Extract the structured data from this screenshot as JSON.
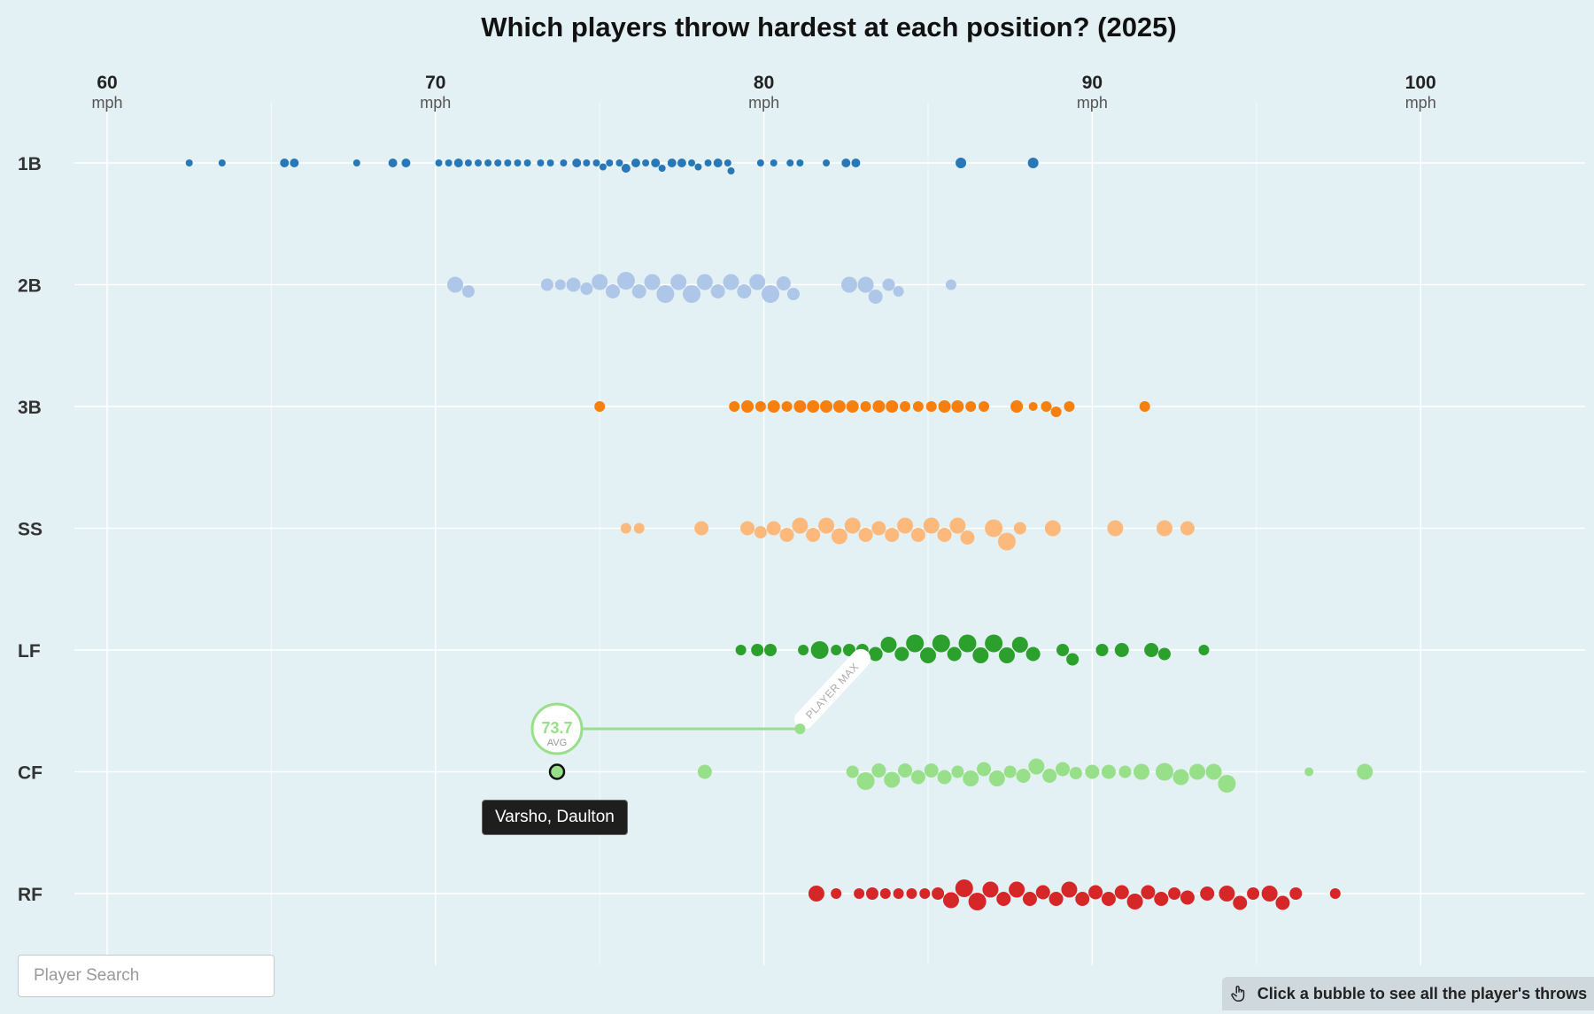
{
  "chart_data": {
    "type": "scatter",
    "subtype": "beeswarm",
    "title": "Which players throw hardest at each position? (2025)",
    "x_axis": {
      "ticks": [
        60,
        70,
        80,
        90,
        100
      ],
      "unit": "mph",
      "range": [
        58.1,
        105.1
      ]
    },
    "categories": [
      "1B",
      "2B",
      "3B",
      "SS",
      "LF",
      "CF",
      "RF"
    ],
    "series": [
      {
        "name": "1B",
        "color": "#2878b8",
        "points": [
          {
            "x": 62.5,
            "r": 4
          },
          {
            "x": 63.5,
            "r": 4
          },
          {
            "x": 65.4,
            "r": 5
          },
          {
            "x": 65.7,
            "r": 5
          },
          {
            "x": 67.6,
            "r": 4
          },
          {
            "x": 68.7,
            "r": 5
          },
          {
            "x": 69.1,
            "r": 5
          },
          {
            "x": 70.1,
            "r": 4
          },
          {
            "x": 70.4,
            "r": 4
          },
          {
            "x": 70.7,
            "r": 5
          },
          {
            "x": 71.0,
            "r": 4
          },
          {
            "x": 71.3,
            "r": 4
          },
          {
            "x": 71.6,
            "r": 4
          },
          {
            "x": 71.9,
            "r": 4
          },
          {
            "x": 72.2,
            "r": 4
          },
          {
            "x": 72.5,
            "r": 4
          },
          {
            "x": 72.8,
            "r": 4
          },
          {
            "x": 73.2,
            "r": 4
          },
          {
            "x": 73.5,
            "r": 4
          },
          {
            "x": 73.9,
            "r": 4
          },
          {
            "x": 74.3,
            "r": 5
          },
          {
            "x": 74.6,
            "r": 4
          },
          {
            "x": 74.9,
            "r": 4
          },
          {
            "x": 75.1,
            "r": 4
          },
          {
            "x": 75.3,
            "r": 4
          },
          {
            "x": 75.6,
            "r": 4
          },
          {
            "x": 75.8,
            "r": 5
          },
          {
            "x": 76.1,
            "r": 5
          },
          {
            "x": 76.4,
            "r": 4
          },
          {
            "x": 76.7,
            "r": 5
          },
          {
            "x": 76.9,
            "r": 4
          },
          {
            "x": 77.2,
            "r": 5
          },
          {
            "x": 77.5,
            "r": 5
          },
          {
            "x": 77.8,
            "r": 4
          },
          {
            "x": 78.0,
            "r": 4
          },
          {
            "x": 78.3,
            "r": 4
          },
          {
            "x": 78.6,
            "r": 5
          },
          {
            "x": 78.9,
            "r": 4
          },
          {
            "x": 79.0,
            "r": 4
          },
          {
            "x": 79.9,
            "r": 4
          },
          {
            "x": 80.3,
            "r": 4
          },
          {
            "x": 80.8,
            "r": 4
          },
          {
            "x": 81.1,
            "r": 4
          },
          {
            "x": 81.9,
            "r": 4
          },
          {
            "x": 82.5,
            "r": 5
          },
          {
            "x": 82.8,
            "r": 5
          },
          {
            "x": 86.0,
            "r": 6
          },
          {
            "x": 88.2,
            "r": 6
          }
        ]
      },
      {
        "name": "2B",
        "color": "#aec7e8",
        "points": [
          {
            "x": 70.6,
            "r": 9
          },
          {
            "x": 71.0,
            "r": 7
          },
          {
            "x": 73.4,
            "r": 7
          },
          {
            "x": 73.8,
            "r": 6
          },
          {
            "x": 74.2,
            "r": 8
          },
          {
            "x": 74.6,
            "r": 7
          },
          {
            "x": 75.0,
            "r": 9
          },
          {
            "x": 75.4,
            "r": 8
          },
          {
            "x": 75.8,
            "r": 10
          },
          {
            "x": 76.2,
            "r": 8
          },
          {
            "x": 76.6,
            "r": 9
          },
          {
            "x": 77.0,
            "r": 10
          },
          {
            "x": 77.4,
            "r": 9
          },
          {
            "x": 77.8,
            "r": 10
          },
          {
            "x": 78.2,
            "r": 9
          },
          {
            "x": 78.6,
            "r": 8
          },
          {
            "x": 79.0,
            "r": 9
          },
          {
            "x": 79.4,
            "r": 8
          },
          {
            "x": 79.8,
            "r": 9
          },
          {
            "x": 80.2,
            "r": 10
          },
          {
            "x": 80.6,
            "r": 8
          },
          {
            "x": 80.9,
            "r": 7
          },
          {
            "x": 82.6,
            "r": 9
          },
          {
            "x": 83.1,
            "r": 9
          },
          {
            "x": 83.4,
            "r": 8
          },
          {
            "x": 83.8,
            "r": 7
          },
          {
            "x": 84.1,
            "r": 6
          },
          {
            "x": 85.7,
            "r": 6
          }
        ]
      },
      {
        "name": "3B",
        "color": "#f77f0e",
        "points": [
          {
            "x": 75.0,
            "r": 6
          },
          {
            "x": 79.1,
            "r": 6
          },
          {
            "x": 79.5,
            "r": 7
          },
          {
            "x": 79.9,
            "r": 6
          },
          {
            "x": 80.3,
            "r": 7
          },
          {
            "x": 80.7,
            "r": 6
          },
          {
            "x": 81.1,
            "r": 7
          },
          {
            "x": 81.5,
            "r": 7
          },
          {
            "x": 81.9,
            "r": 7
          },
          {
            "x": 82.3,
            "r": 7
          },
          {
            "x": 82.7,
            "r": 7
          },
          {
            "x": 83.1,
            "r": 6
          },
          {
            "x": 83.5,
            "r": 7
          },
          {
            "x": 83.9,
            "r": 7
          },
          {
            "x": 84.3,
            "r": 6
          },
          {
            "x": 84.7,
            "r": 6
          },
          {
            "x": 85.1,
            "r": 6
          },
          {
            "x": 85.5,
            "r": 7
          },
          {
            "x": 85.9,
            "r": 7
          },
          {
            "x": 86.3,
            "r": 6
          },
          {
            "x": 86.7,
            "r": 6
          },
          {
            "x": 87.7,
            "r": 7
          },
          {
            "x": 88.2,
            "r": 5
          },
          {
            "x": 88.6,
            "r": 6
          },
          {
            "x": 88.9,
            "r": 6
          },
          {
            "x": 89.3,
            "r": 6
          },
          {
            "x": 91.6,
            "r": 6
          }
        ]
      },
      {
        "name": "SS",
        "color": "#fdb97c",
        "points": [
          {
            "x": 75.8,
            "r": 6
          },
          {
            "x": 76.2,
            "r": 6
          },
          {
            "x": 78.1,
            "r": 8
          },
          {
            "x": 79.5,
            "r": 8
          },
          {
            "x": 79.9,
            "r": 7
          },
          {
            "x": 80.3,
            "r": 8
          },
          {
            "x": 80.7,
            "r": 8
          },
          {
            "x": 81.1,
            "r": 9
          },
          {
            "x": 81.5,
            "r": 8
          },
          {
            "x": 81.9,
            "r": 9
          },
          {
            "x": 82.3,
            "r": 9
          },
          {
            "x": 82.7,
            "r": 9
          },
          {
            "x": 83.1,
            "r": 8
          },
          {
            "x": 83.5,
            "r": 8
          },
          {
            "x": 83.9,
            "r": 8
          },
          {
            "x": 84.3,
            "r": 9
          },
          {
            "x": 84.7,
            "r": 8
          },
          {
            "x": 85.1,
            "r": 9
          },
          {
            "x": 85.5,
            "r": 8
          },
          {
            "x": 85.9,
            "r": 9
          },
          {
            "x": 86.2,
            "r": 8
          },
          {
            "x": 87.0,
            "r": 10
          },
          {
            "x": 87.4,
            "r": 10
          },
          {
            "x": 87.8,
            "r": 7
          },
          {
            "x": 88.8,
            "r": 9
          },
          {
            "x": 90.7,
            "r": 9
          },
          {
            "x": 92.2,
            "r": 9
          },
          {
            "x": 92.9,
            "r": 8
          }
        ]
      },
      {
        "name": "LF",
        "color": "#2ca02c",
        "points": [
          {
            "x": 79.3,
            "r": 6
          },
          {
            "x": 79.8,
            "r": 7
          },
          {
            "x": 80.2,
            "r": 7
          },
          {
            "x": 81.2,
            "r": 6
          },
          {
            "x": 81.7,
            "r": 10
          },
          {
            "x": 82.2,
            "r": 6
          },
          {
            "x": 82.6,
            "r": 7
          },
          {
            "x": 83.0,
            "r": 7
          },
          {
            "x": 83.4,
            "r": 8
          },
          {
            "x": 83.8,
            "r": 9
          },
          {
            "x": 84.2,
            "r": 8
          },
          {
            "x": 84.6,
            "r": 10
          },
          {
            "x": 85.0,
            "r": 9
          },
          {
            "x": 85.4,
            "r": 10
          },
          {
            "x": 85.8,
            "r": 8
          },
          {
            "x": 86.2,
            "r": 10
          },
          {
            "x": 86.6,
            "r": 9
          },
          {
            "x": 87.0,
            "r": 10
          },
          {
            "x": 87.4,
            "r": 9
          },
          {
            "x": 87.8,
            "r": 9
          },
          {
            "x": 88.2,
            "r": 8
          },
          {
            "x": 89.1,
            "r": 7
          },
          {
            "x": 89.4,
            "r": 7
          },
          {
            "x": 90.3,
            "r": 7
          },
          {
            "x": 90.9,
            "r": 8
          },
          {
            "x": 91.8,
            "r": 8
          },
          {
            "x": 92.2,
            "r": 7
          },
          {
            "x": 93.4,
            "r": 6
          }
        ]
      },
      {
        "name": "CF",
        "color": "#98df8a",
        "points": [
          {
            "x": 73.7,
            "r": 8,
            "highlighted": true
          },
          {
            "x": 78.2,
            "r": 8
          },
          {
            "x": 82.7,
            "r": 7
          },
          {
            "x": 83.1,
            "r": 10
          },
          {
            "x": 83.5,
            "r": 8
          },
          {
            "x": 83.9,
            "r": 9
          },
          {
            "x": 84.3,
            "r": 8
          },
          {
            "x": 84.7,
            "r": 8
          },
          {
            "x": 85.1,
            "r": 8
          },
          {
            "x": 85.5,
            "r": 8
          },
          {
            "x": 85.9,
            "r": 7
          },
          {
            "x": 86.3,
            "r": 9
          },
          {
            "x": 86.7,
            "r": 8
          },
          {
            "x": 87.1,
            "r": 9
          },
          {
            "x": 87.5,
            "r": 7
          },
          {
            "x": 87.9,
            "r": 8
          },
          {
            "x": 88.3,
            "r": 9
          },
          {
            "x": 88.7,
            "r": 8
          },
          {
            "x": 89.1,
            "r": 8
          },
          {
            "x": 89.5,
            "r": 7
          },
          {
            "x": 90.0,
            "r": 8
          },
          {
            "x": 90.5,
            "r": 8
          },
          {
            "x": 91.0,
            "r": 7
          },
          {
            "x": 91.5,
            "r": 9
          },
          {
            "x": 92.2,
            "r": 10
          },
          {
            "x": 92.7,
            "r": 9
          },
          {
            "x": 93.2,
            "r": 9
          },
          {
            "x": 93.7,
            "r": 9
          },
          {
            "x": 94.1,
            "r": 10
          },
          {
            "x": 96.6,
            "r": 5
          },
          {
            "x": 98.3,
            "r": 9
          }
        ]
      },
      {
        "name": "RF",
        "color": "#d62728",
        "points": [
          {
            "x": 81.6,
            "r": 9
          },
          {
            "x": 82.2,
            "r": 6
          },
          {
            "x": 82.9,
            "r": 6
          },
          {
            "x": 83.3,
            "r": 7
          },
          {
            "x": 83.7,
            "r": 6
          },
          {
            "x": 84.1,
            "r": 6
          },
          {
            "x": 84.5,
            "r": 6
          },
          {
            "x": 84.9,
            "r": 6
          },
          {
            "x": 85.3,
            "r": 7
          },
          {
            "x": 85.7,
            "r": 9
          },
          {
            "x": 86.1,
            "r": 10
          },
          {
            "x": 86.5,
            "r": 10
          },
          {
            "x": 86.9,
            "r": 9
          },
          {
            "x": 87.3,
            "r": 8
          },
          {
            "x": 87.7,
            "r": 9
          },
          {
            "x": 88.1,
            "r": 8
          },
          {
            "x": 88.5,
            "r": 8
          },
          {
            "x": 88.9,
            "r": 8
          },
          {
            "x": 89.3,
            "r": 9
          },
          {
            "x": 89.7,
            "r": 8
          },
          {
            "x": 90.1,
            "r": 8
          },
          {
            "x": 90.5,
            "r": 8
          },
          {
            "x": 90.9,
            "r": 8
          },
          {
            "x": 91.3,
            "r": 9
          },
          {
            "x": 91.7,
            "r": 8
          },
          {
            "x": 92.1,
            "r": 8
          },
          {
            "x": 92.5,
            "r": 7
          },
          {
            "x": 92.9,
            "r": 8
          },
          {
            "x": 93.5,
            "r": 8
          },
          {
            "x": 94.1,
            "r": 9
          },
          {
            "x": 94.5,
            "r": 8
          },
          {
            "x": 94.9,
            "r": 7
          },
          {
            "x": 95.4,
            "r": 9
          },
          {
            "x": 95.8,
            "r": 8
          },
          {
            "x": 96.2,
            "r": 7
          },
          {
            "x": 97.4,
            "r": 6
          }
        ]
      }
    ],
    "highlight": {
      "position": "CF",
      "player": "Varsho, Daulton",
      "avg_value": "73.7",
      "avg_label": "AVG",
      "avg_x": 73.7,
      "max_x": 81.1,
      "max_label": "PLAYER MAX",
      "color": "#98df8a"
    }
  },
  "search": {
    "placeholder": "Player Search"
  },
  "hint": {
    "text": "Click a bubble to see all the player's throws",
    "icon": "pointer-hand-icon"
  }
}
